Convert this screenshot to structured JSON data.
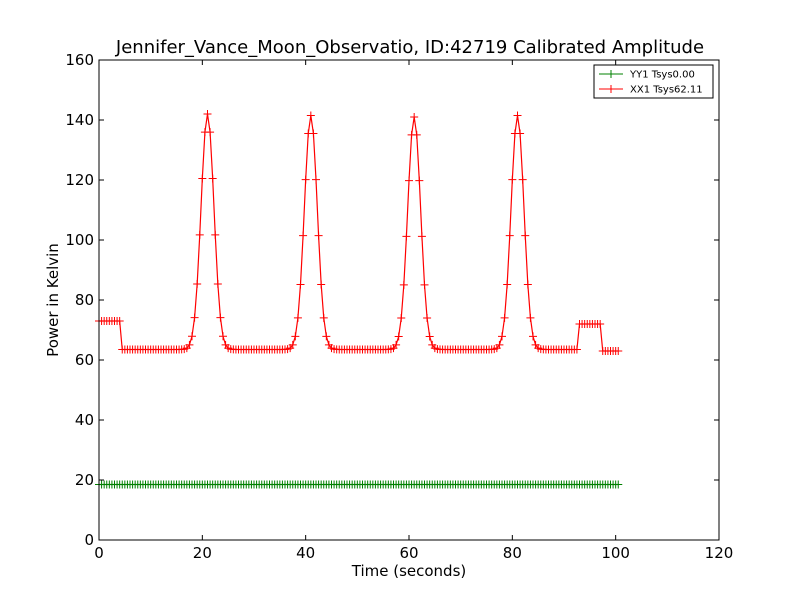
{
  "chart_data": {
    "type": "line",
    "title": "Jennifer_Vance_Moon_Observatio, ID:42719 Calibrated Amplitude",
    "xlabel": "Time (seconds)",
    "ylabel": "Power in Kelvin",
    "xlim": [
      0,
      120
    ],
    "ylim": [
      0,
      160
    ],
    "xticks": [
      0,
      20,
      40,
      60,
      80,
      100,
      120
    ],
    "yticks": [
      0,
      20,
      40,
      60,
      80,
      100,
      120,
      140,
      160
    ],
    "grid": false,
    "legend_position": "top-right",
    "series": [
      {
        "name": "YY1 Tsys0.00",
        "color": "#008000",
        "marker": "+",
        "x_start": 0,
        "x_end": 100.5,
        "x_step": 0.5,
        "baseline": 18.5
      },
      {
        "name": "XX1 Tsys62.11",
        "color": "#ff0000",
        "marker": "+",
        "x_start": 0,
        "x_end": 100.5,
        "x_step": 0.5,
        "baseline": 63.5,
        "plateaus": [
          {
            "x_from": 0,
            "x_to": 4,
            "value": 73
          },
          {
            "x_from": 93,
            "x_to": 97,
            "value": 72
          }
        ],
        "end_level": 63,
        "peaks": [
          {
            "center": 21,
            "height": 142,
            "width": 1.25
          },
          {
            "center": 41,
            "height": 141.5,
            "width": 1.25
          },
          {
            "center": 61,
            "height": 141,
            "width": 1.25
          },
          {
            "center": 81,
            "height": 141.5,
            "width": 1.25
          }
        ]
      }
    ]
  }
}
